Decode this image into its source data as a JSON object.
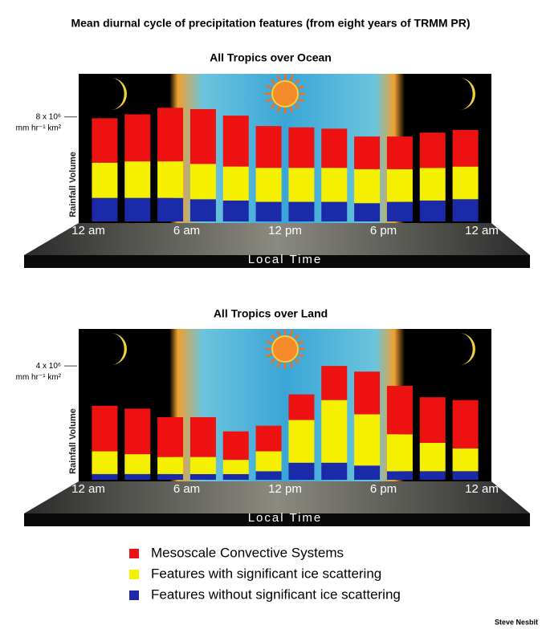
{
  "title": "Mean diurnal cycle of precipitation features (from eight years of TRMM PR)",
  "credit": "Steve Nesbit",
  "chart_data": [
    {
      "type": "bar",
      "stacked": true,
      "title": "All Tropics over Ocean",
      "x_label": "Local Time",
      "y_label": "Rainfall Volume",
      "y_units": "mm hr⁻¹ km²",
      "x": [
        1,
        3,
        5,
        7,
        9,
        11,
        13,
        15,
        17,
        19,
        21,
        23
      ],
      "xlim": [
        0,
        24
      ],
      "xticks": [
        {
          "value": 0,
          "label": "12 am"
        },
        {
          "value": 6,
          "label": "6 am"
        },
        {
          "value": 12,
          "label": "12 pm"
        },
        {
          "value": 18,
          "label": "6 pm"
        },
        {
          "value": 24,
          "label": "12 am"
        }
      ],
      "ylim": [
        0,
        11300000
      ],
      "yticks": [
        {
          "value": 8000000,
          "label": "8 x 10⁶"
        }
      ],
      "series": [
        {
          "name": "Mesoscale Convective Systems",
          "color": "#ee1111",
          "values": [
            3400000,
            3600000,
            4100000,
            4200000,
            3900000,
            3200000,
            3100000,
            3000000,
            2500000,
            2500000,
            2700000,
            2800000
          ]
        },
        {
          "name": "Features with significant ice scattering",
          "color": "#f5f000",
          "values": [
            2700000,
            2800000,
            2800000,
            2700000,
            2600000,
            2600000,
            2600000,
            2600000,
            2600000,
            2500000,
            2500000,
            2500000
          ]
        },
        {
          "name": "Features without significant ice scattering",
          "color": "#1a2aa8",
          "values": [
            1800000,
            1800000,
            1800000,
            1700000,
            1600000,
            1500000,
            1500000,
            1500000,
            1400000,
            1500000,
            1600000,
            1700000
          ]
        }
      ]
    },
    {
      "type": "bar",
      "stacked": true,
      "title": "All Tropics over Land",
      "x_label": "Local Time",
      "y_label": "Rainfall Volume",
      "y_units": "mm hr⁻¹ km²",
      "x": [
        1,
        3,
        5,
        7,
        9,
        11,
        13,
        15,
        17,
        19,
        21,
        23
      ],
      "xlim": [
        0,
        24
      ],
      "xticks": [
        {
          "value": 0,
          "label": "12 am"
        },
        {
          "value": 6,
          "label": "6 am"
        },
        {
          "value": 12,
          "label": "12 pm"
        },
        {
          "value": 18,
          "label": "6 pm"
        },
        {
          "value": 24,
          "label": "12 am"
        }
      ],
      "ylim": [
        0,
        5300000
      ],
      "yticks": [
        {
          "value": 4000000,
          "label": "4 x 10⁶"
        }
      ],
      "series": [
        {
          "color": "#ee1111",
          "values": [
            1600000,
            1600000,
            1400000,
            1400000,
            1000000,
            900000,
            900000,
            1200000,
            1500000,
            1700000,
            1600000,
            1700000
          ]
        },
        {
          "color": "#f5f000",
          "values": [
            800000,
            700000,
            600000,
            600000,
            500000,
            700000,
            1500000,
            2200000,
            1800000,
            1300000,
            1000000,
            800000
          ]
        },
        {
          "color": "#1a2aa8",
          "values": [
            200000,
            200000,
            200000,
            200000,
            200000,
            300000,
            600000,
            600000,
            500000,
            300000,
            300000,
            300000
          ]
        }
      ]
    }
  ]
}
